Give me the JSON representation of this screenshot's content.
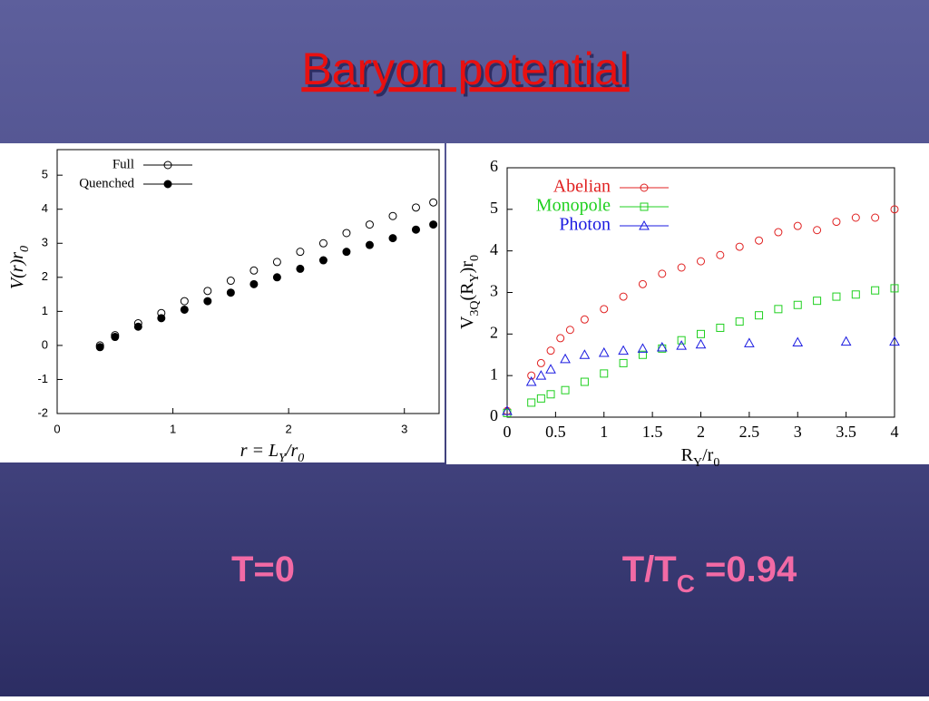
{
  "title": "Baryon potential",
  "labels": [
    [
      "T=0"
    ],
    [
      "T/T",
      "C",
      " =0.94"
    ]
  ],
  "chart_data": [
    {
      "type": "scatter",
      "legend": "upper left",
      "xlabel": [
        "r = L",
        "Y",
        "/r",
        "0"
      ],
      "ylabel": [
        "V(r)r",
        "0"
      ],
      "xlim": [
        0,
        3.3
      ],
      "ylim": [
        -2,
        5.75
      ],
      "xticks": [
        0,
        1,
        2,
        3
      ],
      "yticks": [
        -2,
        -1,
        0,
        1,
        2,
        3,
        4,
        5
      ],
      "series": [
        {
          "name": "Full",
          "color": "#000000",
          "marker": "circle",
          "filled": false,
          "x": [
            0.37,
            0.5,
            0.7,
            0.9,
            1.1,
            1.3,
            1.5,
            1.7,
            1.9,
            2.1,
            2.3,
            2.5,
            2.7,
            2.9,
            3.1,
            3.25
          ],
          "values": [
            0.0,
            0.3,
            0.65,
            0.95,
            1.3,
            1.6,
            1.9,
            2.2,
            2.45,
            2.75,
            3.0,
            3.3,
            3.55,
            3.8,
            4.05,
            4.2
          ]
        },
        {
          "name": "Quenched",
          "color": "#000000",
          "marker": "circle",
          "filled": true,
          "x": [
            0.37,
            0.5,
            0.7,
            0.9,
            1.1,
            1.3,
            1.5,
            1.7,
            1.9,
            2.1,
            2.3,
            2.5,
            2.7,
            2.9,
            3.1,
            3.25
          ],
          "values": [
            -0.05,
            0.25,
            0.55,
            0.8,
            1.05,
            1.3,
            1.55,
            1.8,
            2.0,
            2.25,
            2.5,
            2.75,
            2.95,
            3.15,
            3.4,
            3.55
          ]
        }
      ]
    },
    {
      "type": "scatter",
      "legend": "upper left",
      "xlabel": [
        "R",
        "Y",
        "/r",
        "0"
      ],
      "ylabel": [
        "V",
        "3Q",
        "(R",
        "Y",
        ")r",
        "0"
      ],
      "xlim": [
        0,
        4
      ],
      "ylim": [
        0,
        6
      ],
      "xticks": [
        0,
        0.5,
        1,
        1.5,
        2,
        2.5,
        3,
        3.5,
        4
      ],
      "yticks": [
        0,
        1,
        2,
        3,
        4,
        5,
        6
      ],
      "series": [
        {
          "name": "Abelian",
          "color": "#e02020",
          "marker": "circle",
          "filled": false,
          "x": [
            0,
            0.25,
            0.35,
            0.45,
            0.55,
            0.65,
            0.8,
            1.0,
            1.2,
            1.4,
            1.6,
            1.8,
            2.0,
            2.2,
            2.4,
            2.6,
            2.8,
            3.0,
            3.2,
            3.4,
            3.6,
            3.8,
            4.0
          ],
          "values": [
            0.15,
            1.0,
            1.3,
            1.6,
            1.9,
            2.1,
            2.35,
            2.6,
            2.9,
            3.2,
            3.45,
            3.6,
            3.75,
            3.9,
            4.1,
            4.25,
            4.45,
            4.6,
            4.5,
            4.7,
            4.8,
            4.8,
            5.0
          ]
        },
        {
          "name": "Monopole",
          "color": "#20d020",
          "marker": "square",
          "filled": false,
          "x": [
            0,
            0.25,
            0.35,
            0.45,
            0.6,
            0.8,
            1.0,
            1.2,
            1.4,
            1.6,
            1.8,
            2.0,
            2.2,
            2.4,
            2.6,
            2.8,
            3.0,
            3.2,
            3.4,
            3.6,
            3.8,
            4.0
          ],
          "values": [
            0.1,
            0.35,
            0.45,
            0.55,
            0.65,
            0.85,
            1.05,
            1.3,
            1.5,
            1.65,
            1.85,
            2.0,
            2.15,
            2.3,
            2.45,
            2.6,
            2.7,
            2.8,
            2.9,
            2.95,
            3.05,
            3.1
          ]
        },
        {
          "name": "Photon",
          "color": "#1a1ae0",
          "marker": "triangle",
          "filled": false,
          "x": [
            0,
            0.25,
            0.35,
            0.45,
            0.6,
            0.8,
            1.0,
            1.2,
            1.4,
            1.6,
            1.8,
            2.0,
            2.5,
            3.0,
            3.5,
            4.0
          ],
          "values": [
            0.15,
            0.85,
            1.0,
            1.15,
            1.4,
            1.5,
            1.55,
            1.6,
            1.65,
            1.68,
            1.72,
            1.75,
            1.78,
            1.8,
            1.82,
            1.82
          ]
        }
      ]
    }
  ]
}
